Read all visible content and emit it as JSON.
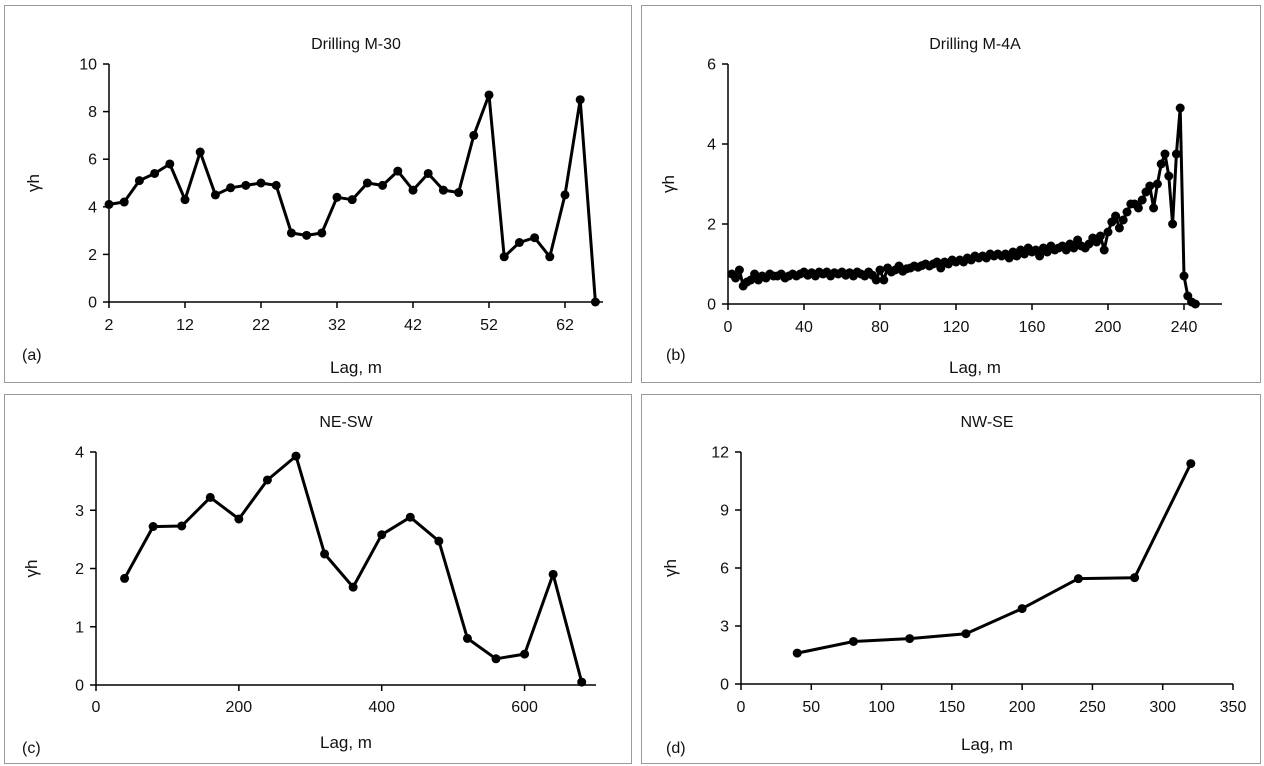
{
  "chart_data": [
    {
      "id": "a",
      "panel_label": "(a)",
      "type": "line",
      "title": "Drilling M-30",
      "xlabel": "Lag, m",
      "ylabel": "γh",
      "xlim": [
        2,
        67
      ],
      "ylim": [
        0,
        10
      ],
      "xticks": [
        2,
        12,
        22,
        32,
        42,
        52,
        62
      ],
      "yticks": [
        0,
        2,
        4,
        6,
        8,
        10
      ],
      "markers": true,
      "series": [
        {
          "x": [
            2,
            4,
            6,
            8,
            10,
            12,
            14,
            16,
            18,
            20,
            22,
            24,
            26,
            28,
            30,
            32,
            34,
            36,
            38,
            40,
            42,
            44,
            46,
            48,
            50,
            52,
            54,
            56,
            58,
            60,
            62,
            64,
            66
          ],
          "y": [
            4.1,
            4.2,
            5.1,
            5.4,
            5.8,
            4.3,
            6.3,
            4.5,
            4.8,
            4.9,
            5.0,
            4.9,
            2.9,
            2.8,
            2.9,
            4.4,
            4.3,
            5.0,
            4.9,
            5.5,
            4.7,
            5.4,
            4.7,
            4.6,
            7.0,
            8.7,
            1.9,
            2.5,
            2.7,
            1.9,
            4.5,
            8.5,
            0.0
          ]
        }
      ]
    },
    {
      "id": "b",
      "panel_label": "(b)",
      "type": "line",
      "title": "Drilling M-4A",
      "xlabel": "Lag, m",
      "ylabel": "γh",
      "xlim": [
        0,
        260
      ],
      "ylim": [
        0,
        6
      ],
      "xticks": [
        0,
        40,
        80,
        120,
        160,
        200,
        240
      ],
      "yticks": [
        0,
        2,
        4,
        6
      ],
      "markers": true,
      "series": [
        {
          "x": [
            2,
            4,
            6,
            8,
            10,
            12,
            14,
            16,
            18,
            20,
            22,
            24,
            26,
            28,
            30,
            32,
            34,
            36,
            38,
            40,
            42,
            44,
            46,
            48,
            50,
            52,
            54,
            56,
            58,
            60,
            62,
            64,
            66,
            68,
            70,
            72,
            74,
            76,
            78,
            80,
            82,
            84,
            86,
            88,
            90,
            92,
            94,
            96,
            98,
            100,
            102,
            104,
            106,
            108,
            110,
            112,
            114,
            116,
            118,
            120,
            122,
            124,
            126,
            128,
            130,
            132,
            134,
            136,
            138,
            140,
            142,
            144,
            146,
            148,
            150,
            152,
            154,
            156,
            158,
            160,
            162,
            164,
            166,
            168,
            170,
            172,
            174,
            176,
            178,
            180,
            182,
            184,
            186,
            188,
            190,
            192,
            194,
            196,
            198,
            200,
            202,
            204,
            206,
            208,
            210,
            212,
            214,
            216,
            218,
            220,
            222,
            224,
            226,
            228,
            230,
            232,
            234,
            236,
            238,
            240,
            242,
            244,
            246
          ],
          "y": [
            0.75,
            0.65,
            0.85,
            0.45,
            0.55,
            0.6,
            0.75,
            0.6,
            0.7,
            0.65,
            0.75,
            0.7,
            0.7,
            0.75,
            0.65,
            0.7,
            0.75,
            0.7,
            0.75,
            0.8,
            0.72,
            0.78,
            0.7,
            0.8,
            0.75,
            0.8,
            0.7,
            0.78,
            0.75,
            0.8,
            0.72,
            0.78,
            0.7,
            0.8,
            0.75,
            0.7,
            0.8,
            0.72,
            0.6,
            0.85,
            0.6,
            0.9,
            0.8,
            0.85,
            0.95,
            0.82,
            0.88,
            0.9,
            0.95,
            0.92,
            0.96,
            1.0,
            0.95,
            1.0,
            1.05,
            0.9,
            1.05,
            1.0,
            1.1,
            1.05,
            1.1,
            1.05,
            1.15,
            1.1,
            1.2,
            1.15,
            1.2,
            1.15,
            1.25,
            1.2,
            1.25,
            1.2,
            1.25,
            1.15,
            1.3,
            1.2,
            1.35,
            1.25,
            1.4,
            1.3,
            1.35,
            1.2,
            1.4,
            1.3,
            1.45,
            1.35,
            1.4,
            1.45,
            1.35,
            1.5,
            1.4,
            1.6,
            1.45,
            1.4,
            1.5,
            1.65,
            1.55,
            1.7,
            1.35,
            1.8,
            2.05,
            2.2,
            1.9,
            2.1,
            2.3,
            2.5,
            2.5,
            2.4,
            2.6,
            2.8,
            2.95,
            2.4,
            3.0,
            3.5,
            3.75,
            3.2,
            2.0,
            3.75,
            4.9,
            0.7,
            0.2,
            0.05,
            0.0
          ]
        }
      ]
    },
    {
      "id": "c",
      "panel_label": "(c)",
      "type": "line",
      "title": "NE-SW",
      "xlabel": "Lag, m",
      "ylabel": "γh",
      "xlim": [
        0,
        700
      ],
      "ylim": [
        0,
        4
      ],
      "xticks": [
        0,
        200,
        400,
        600
      ],
      "yticks": [
        0,
        1,
        2,
        3,
        4
      ],
      "markers": true,
      "series": [
        {
          "x": [
            40,
            80,
            120,
            160,
            200,
            240,
            280,
            320,
            360,
            400,
            440,
            480,
            520,
            560,
            600,
            640,
            680
          ],
          "y": [
            1.83,
            2.72,
            2.73,
            3.22,
            2.85,
            3.52,
            3.93,
            2.25,
            1.68,
            2.58,
            2.88,
            2.47,
            0.8,
            0.45,
            0.53,
            1.9,
            0.05
          ]
        }
      ]
    },
    {
      "id": "d",
      "panel_label": "(d)",
      "type": "line",
      "title": "NW-SE",
      "xlabel": "Lag, m",
      "ylabel": "γh",
      "xlim": [
        0,
        350
      ],
      "ylim": [
        0,
        12
      ],
      "xticks": [
        0,
        50,
        100,
        150,
        200,
        250,
        300,
        350
      ],
      "yticks": [
        0,
        3,
        6,
        9,
        12
      ],
      "markers": true,
      "series": [
        {
          "x": [
            40,
            80,
            120,
            160,
            200,
            240,
            280,
            320
          ],
          "y": [
            1.6,
            2.2,
            2.35,
            2.6,
            3.9,
            5.45,
            5.5,
            11.4
          ]
        }
      ]
    }
  ]
}
